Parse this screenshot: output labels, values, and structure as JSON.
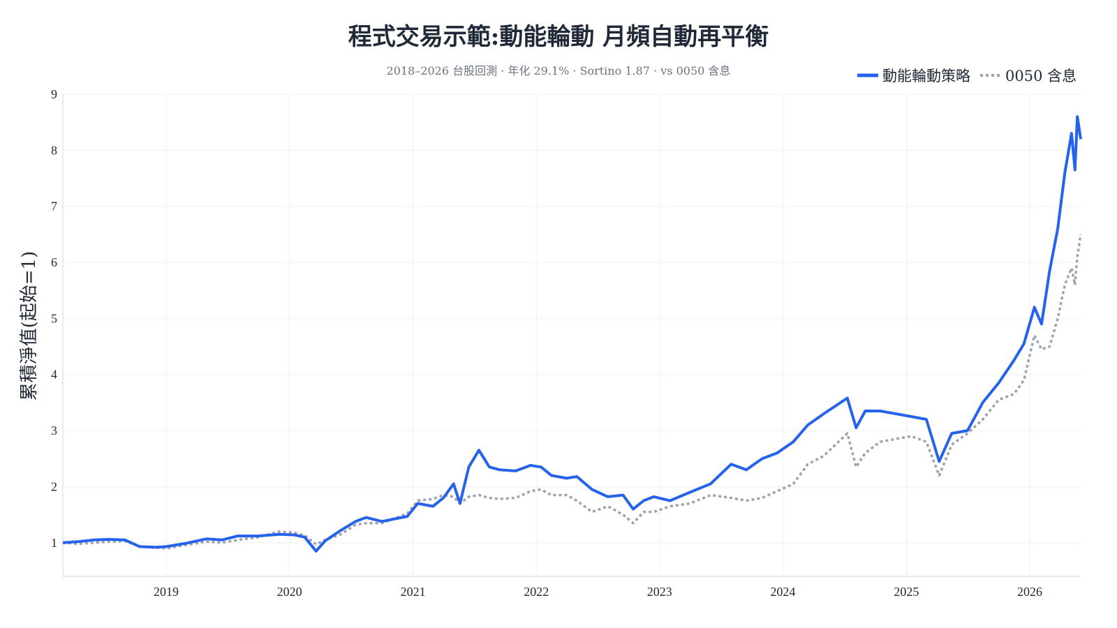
{
  "chart_data": {
    "type": "line",
    "title": "程式交易示範:動能輪動 月頻自動再平衡",
    "subtitle": "2018–2026 台股回測 · 年化 29.1% · Sortino 1.87 · vs 0050 含息",
    "xlabel": "",
    "ylabel": "累積淨值(起始=1)",
    "x_range": [
      "2018-03-01",
      "2026-06-01"
    ],
    "ylim": [
      0.4,
      9
    ],
    "x_ticks": [
      "2019",
      "2020",
      "2021",
      "2022",
      "2023",
      "2024",
      "2025",
      "2026"
    ],
    "y_ticks": [
      1,
      2,
      3,
      4,
      5,
      6,
      7,
      8,
      9
    ],
    "grid": true,
    "legend_position": "top-right",
    "series": [
      {
        "name": "動能輪動策略",
        "color": "#2563eb",
        "style": "solid",
        "points": [
          [
            "2018-03-01",
            1.0
          ],
          [
            "2018-04-15",
            1.02
          ],
          [
            "2018-06-01",
            1.05
          ],
          [
            "2018-07-15",
            1.06
          ],
          [
            "2018-09-01",
            1.05
          ],
          [
            "2018-10-15",
            0.93
          ],
          [
            "2018-12-01",
            0.92
          ],
          [
            "2019-01-01",
            0.93
          ],
          [
            "2019-03-01",
            0.99
          ],
          [
            "2019-05-01",
            1.07
          ],
          [
            "2019-06-15",
            1.05
          ],
          [
            "2019-08-01",
            1.12
          ],
          [
            "2019-10-01",
            1.12
          ],
          [
            "2019-12-01",
            1.15
          ],
          [
            "2020-01-15",
            1.14
          ],
          [
            "2020-02-15",
            1.1
          ],
          [
            "2020-03-20",
            0.85
          ],
          [
            "2020-04-15",
            1.03
          ],
          [
            "2020-06-01",
            1.22
          ],
          [
            "2020-07-15",
            1.38
          ],
          [
            "2020-08-15",
            1.45
          ],
          [
            "2020-10-01",
            1.38
          ],
          [
            "2020-12-15",
            1.47
          ],
          [
            "2021-01-15",
            1.7
          ],
          [
            "2021-03-01",
            1.65
          ],
          [
            "2021-04-01",
            1.8
          ],
          [
            "2021-05-01",
            2.05
          ],
          [
            "2021-05-20",
            1.7
          ],
          [
            "2021-06-15",
            2.35
          ],
          [
            "2021-07-15",
            2.65
          ],
          [
            "2021-08-15",
            2.35
          ],
          [
            "2021-09-15",
            2.3
          ],
          [
            "2021-11-01",
            2.28
          ],
          [
            "2021-12-15",
            2.38
          ],
          [
            "2022-01-15",
            2.35
          ],
          [
            "2022-02-15",
            2.2
          ],
          [
            "2022-04-01",
            2.15
          ],
          [
            "2022-05-01",
            2.18
          ],
          [
            "2022-06-15",
            1.95
          ],
          [
            "2022-08-01",
            1.82
          ],
          [
            "2022-09-15",
            1.85
          ],
          [
            "2022-10-15",
            1.6
          ],
          [
            "2022-11-15",
            1.75
          ],
          [
            "2022-12-15",
            1.82
          ],
          [
            "2023-02-01",
            1.75
          ],
          [
            "2023-04-01",
            1.9
          ],
          [
            "2023-06-01",
            2.05
          ],
          [
            "2023-08-01",
            2.4
          ],
          [
            "2023-09-15",
            2.3
          ],
          [
            "2023-11-01",
            2.5
          ],
          [
            "2023-12-15",
            2.6
          ],
          [
            "2024-02-01",
            2.8
          ],
          [
            "2024-03-15",
            3.1
          ],
          [
            "2024-05-01",
            3.3
          ],
          [
            "2024-07-10",
            3.58
          ],
          [
            "2024-08-05",
            3.05
          ],
          [
            "2024-09-01",
            3.35
          ],
          [
            "2024-10-15",
            3.35
          ],
          [
            "2024-12-01",
            3.3
          ],
          [
            "2025-01-15",
            3.25
          ],
          [
            "2025-03-01",
            3.2
          ],
          [
            "2025-04-08",
            2.45
          ],
          [
            "2025-05-15",
            2.95
          ],
          [
            "2025-07-01",
            3.0
          ],
          [
            "2025-08-15",
            3.5
          ],
          [
            "2025-10-01",
            3.85
          ],
          [
            "2025-11-15",
            4.25
          ],
          [
            "2025-12-15",
            4.55
          ],
          [
            "2026-01-15",
            5.2
          ],
          [
            "2026-02-05",
            4.9
          ],
          [
            "2026-03-01",
            5.85
          ],
          [
            "2026-03-25",
            6.6
          ],
          [
            "2026-04-15",
            7.6
          ],
          [
            "2026-05-05",
            8.3
          ],
          [
            "2026-05-15",
            7.65
          ],
          [
            "2026-05-22",
            8.6
          ],
          [
            "2026-06-01",
            8.2
          ]
        ]
      },
      {
        "name": "0050 含息",
        "color": "#9ca3af",
        "style": "dotted",
        "points": [
          [
            "2018-03-01",
            1.0
          ],
          [
            "2018-04-15",
            0.98
          ],
          [
            "2018-06-01",
            1.0
          ],
          [
            "2018-07-15",
            1.02
          ],
          [
            "2018-09-01",
            1.03
          ],
          [
            "2018-10-15",
            0.93
          ],
          [
            "2018-12-01",
            0.91
          ],
          [
            "2019-01-01",
            0.9
          ],
          [
            "2019-03-01",
            0.96
          ],
          [
            "2019-05-01",
            1.02
          ],
          [
            "2019-06-15",
            1.0
          ],
          [
            "2019-08-01",
            1.05
          ],
          [
            "2019-10-01",
            1.1
          ],
          [
            "2019-12-01",
            1.2
          ],
          [
            "2020-01-15",
            1.18
          ],
          [
            "2020-02-15",
            1.13
          ],
          [
            "2020-03-20",
            0.97
          ],
          [
            "2020-04-15",
            1.05
          ],
          [
            "2020-06-01",
            1.15
          ],
          [
            "2020-07-15",
            1.32
          ],
          [
            "2020-08-15",
            1.35
          ],
          [
            "2020-10-01",
            1.35
          ],
          [
            "2020-12-15",
            1.52
          ],
          [
            "2021-01-15",
            1.75
          ],
          [
            "2021-03-01",
            1.78
          ],
          [
            "2021-04-01",
            1.85
          ],
          [
            "2021-05-01",
            1.82
          ],
          [
            "2021-05-20",
            1.7
          ],
          [
            "2021-06-15",
            1.82
          ],
          [
            "2021-07-15",
            1.85
          ],
          [
            "2021-08-15",
            1.8
          ],
          [
            "2021-09-15",
            1.78
          ],
          [
            "2021-11-01",
            1.8
          ],
          [
            "2021-12-15",
            1.92
          ],
          [
            "2022-01-15",
            1.95
          ],
          [
            "2022-02-15",
            1.85
          ],
          [
            "2022-04-01",
            1.85
          ],
          [
            "2022-05-01",
            1.75
          ],
          [
            "2022-06-15",
            1.55
          ],
          [
            "2022-08-01",
            1.65
          ],
          [
            "2022-09-15",
            1.5
          ],
          [
            "2022-10-15",
            1.35
          ],
          [
            "2022-11-15",
            1.55
          ],
          [
            "2022-12-15",
            1.55
          ],
          [
            "2023-02-01",
            1.65
          ],
          [
            "2023-04-01",
            1.7
          ],
          [
            "2023-06-01",
            1.85
          ],
          [
            "2023-08-01",
            1.8
          ],
          [
            "2023-09-15",
            1.75
          ],
          [
            "2023-11-01",
            1.8
          ],
          [
            "2023-12-15",
            1.92
          ],
          [
            "2024-02-01",
            2.05
          ],
          [
            "2024-03-15",
            2.4
          ],
          [
            "2024-05-01",
            2.55
          ],
          [
            "2024-07-10",
            2.95
          ],
          [
            "2024-08-05",
            2.35
          ],
          [
            "2024-09-01",
            2.6
          ],
          [
            "2024-10-15",
            2.8
          ],
          [
            "2024-12-01",
            2.85
          ],
          [
            "2025-01-15",
            2.9
          ],
          [
            "2025-03-01",
            2.8
          ],
          [
            "2025-04-08",
            2.2
          ],
          [
            "2025-05-15",
            2.75
          ],
          [
            "2025-07-01",
            2.95
          ],
          [
            "2025-08-15",
            3.2
          ],
          [
            "2025-10-01",
            3.55
          ],
          [
            "2025-11-15",
            3.65
          ],
          [
            "2025-12-15",
            3.9
          ],
          [
            "2026-01-15",
            4.7
          ],
          [
            "2026-02-05",
            4.45
          ],
          [
            "2026-03-01",
            4.5
          ],
          [
            "2026-03-25",
            5.0
          ],
          [
            "2026-04-15",
            5.6
          ],
          [
            "2026-05-05",
            5.9
          ],
          [
            "2026-05-15",
            5.6
          ],
          [
            "2026-05-22",
            6.1
          ],
          [
            "2026-06-01",
            6.5
          ]
        ]
      }
    ]
  }
}
